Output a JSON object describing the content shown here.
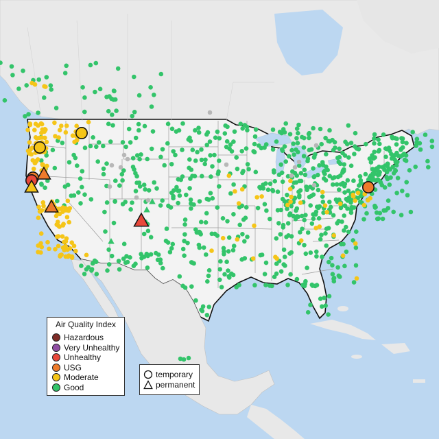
{
  "legend": {
    "title": "Air Quality Index",
    "categories": [
      {
        "label": "Hazardous",
        "color": "#7e2c28"
      },
      {
        "label": "Very Unhealthy",
        "color": "#8f4ea3"
      },
      {
        "label": "Unhealthy",
        "color": "#e8483a"
      },
      {
        "label": "USG",
        "color": "#ee7b2b"
      },
      {
        "label": "Moderate",
        "color": "#f5c518"
      },
      {
        "label": "Good",
        "color": "#33c46a"
      }
    ]
  },
  "monitor_types": [
    {
      "label": "temporary",
      "shape": "circle-icon"
    },
    {
      "label": "permanent",
      "shape": "triangle-icon"
    }
  ],
  "colors": {
    "water": "#bcd7f1",
    "land": "#ececec",
    "usa_land": "#f4f4f4",
    "state_border": "#9a9a9a",
    "national_border": "#111111",
    "inactive_station": "#b7b7b7"
  }
}
